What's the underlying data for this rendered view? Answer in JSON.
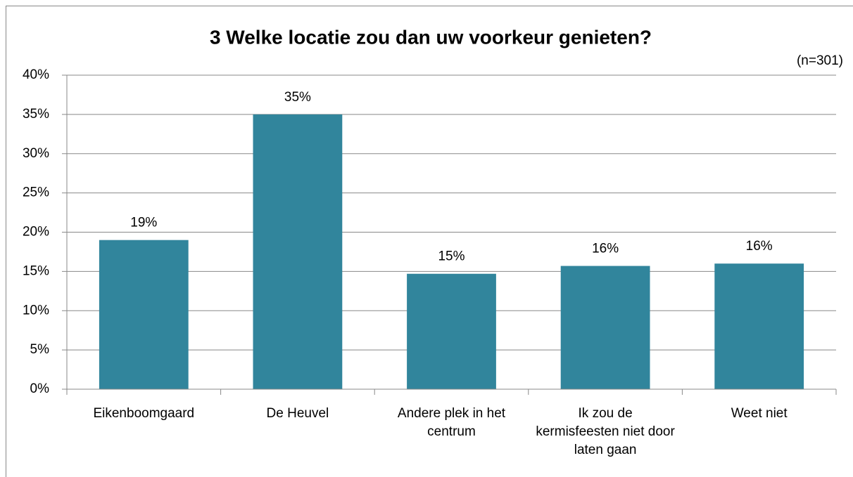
{
  "chart_data": {
    "type": "bar",
    "title": "3 Welke locatie zou dan uw voorkeur genieten?",
    "subtitle": "(n=301)",
    "categories": [
      "Eikenboomgaard",
      "De Heuvel",
      "Andere plek in het centrum",
      "Ik zou de kermisfeesten niet door laten gaan",
      "Weet niet"
    ],
    "values": [
      19,
      35,
      14.7,
      15.7,
      16
    ],
    "value_labels": [
      "19%",
      "35%",
      "15%",
      "16%",
      "16%"
    ],
    "color": "#31859c",
    "ylim": [
      0,
      40
    ],
    "yticks": [
      {
        "value": 0,
        "label": "0%"
      },
      {
        "value": 5,
        "label": "5%"
      },
      {
        "value": 10,
        "label": "10%"
      },
      {
        "value": 15,
        "label": "15%"
      },
      {
        "value": 20,
        "label": "20%"
      },
      {
        "value": 25,
        "label": "25%"
      },
      {
        "value": 30,
        "label": "30%"
      },
      {
        "value": 35,
        "label": "35%"
      },
      {
        "value": 40,
        "label": "40%"
      }
    ],
    "grid": true
  }
}
